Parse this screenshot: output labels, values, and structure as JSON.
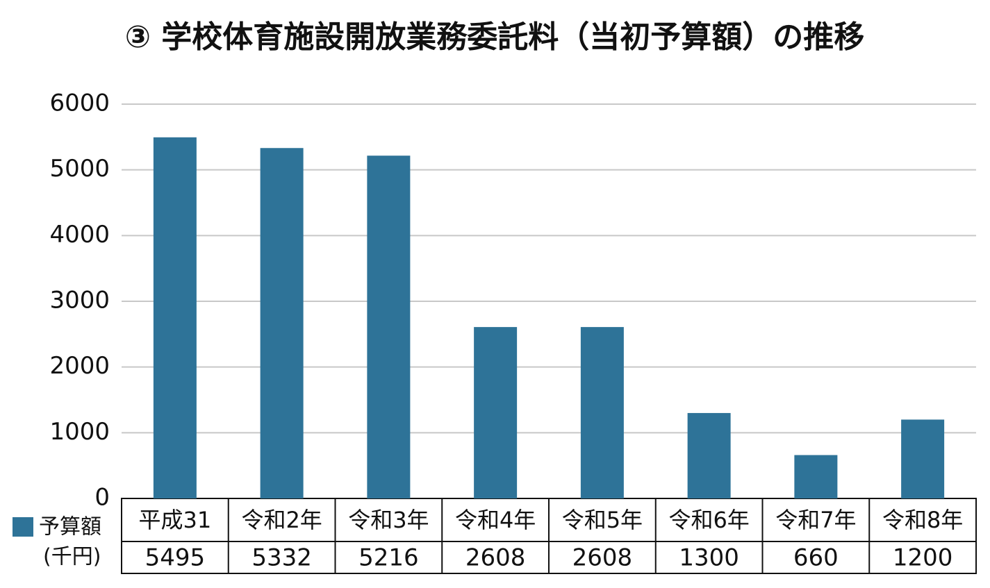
{
  "chart_data": {
    "type": "bar",
    "title": "③ 学校体育施設開放業務委託料（当初予算額）の推移",
    "categories": [
      "平成31",
      "令和2年",
      "令和3年",
      "令和4年",
      "令和5年",
      "令和6年",
      "令和7年",
      "令和8年"
    ],
    "series": [
      {
        "name": "予算額",
        "color": "#2e7398",
        "values": [
          5495,
          5332,
          5216,
          2608,
          2608,
          1300,
          660,
          1200
        ]
      }
    ],
    "unit_label": "(千円)",
    "ylim": [
      0,
      6000
    ],
    "yticks": [
      0,
      1000,
      2000,
      3000,
      4000,
      5000,
      6000
    ],
    "grid": true
  }
}
